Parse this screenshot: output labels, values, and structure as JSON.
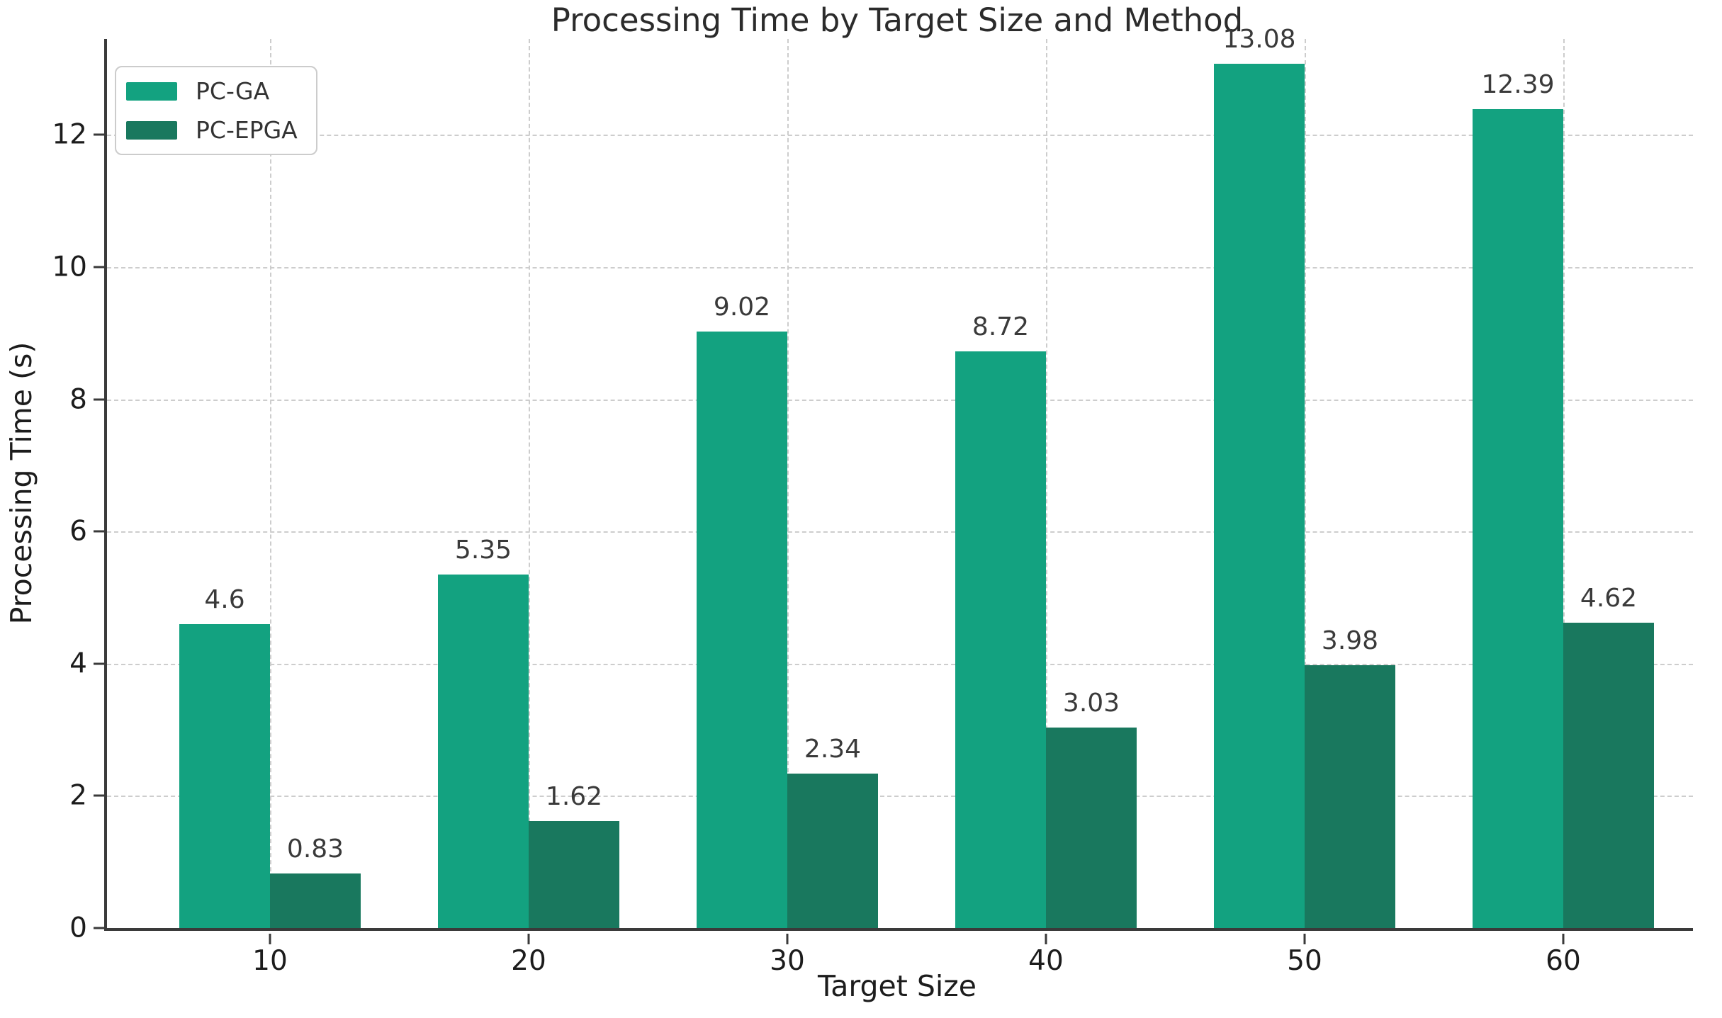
{
  "chart_data": {
    "type": "bar",
    "title": "Processing Time by Target Size and Method",
    "xlabel": "Target Size",
    "ylabel": "Processing Time (s)",
    "categories": [
      "10",
      "20",
      "30",
      "40",
      "50",
      "60"
    ],
    "series": [
      {
        "name": "PC-GA",
        "color": "#13A280",
        "values": [
          4.6,
          5.35,
          9.02,
          8.72,
          13.08,
          12.39
        ]
      },
      {
        "name": "PC-EPGA",
        "color": "#19785E",
        "values": [
          0.83,
          1.62,
          2.34,
          3.03,
          3.98,
          4.62
        ]
      }
    ],
    "bar_value_labels": [
      "4.6",
      "5.35",
      "9.02",
      "8.72",
      "13.08",
      "12.39",
      "0.83",
      "1.62",
      "2.34",
      "3.03",
      "3.98",
      "4.62"
    ],
    "yticks": [
      0,
      2,
      4,
      6,
      8,
      10,
      12
    ],
    "ylim": [
      0,
      13.45
    ],
    "grid": "dashed light-gray, horizontal and vertical",
    "legend_position": "upper left",
    "colors": {
      "spine": "#3a3a3a",
      "grid": "#cdcdcd",
      "title_text": "#2b2b2b",
      "tick_text": "#1c1c1c",
      "value_label_text": "#3a3a3a",
      "background": "#ffffff"
    }
  }
}
